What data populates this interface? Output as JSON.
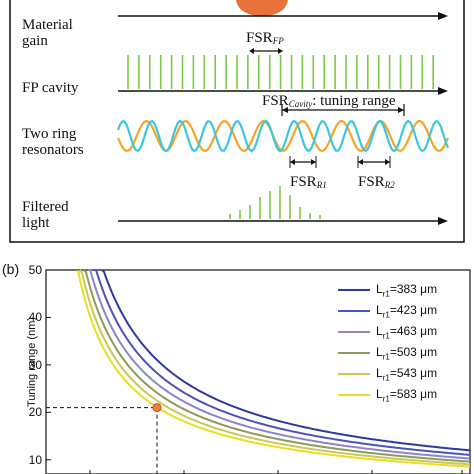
{
  "panel_a": {
    "rows": [
      {
        "label_line1": "Material",
        "label_line2": "gain"
      },
      {
        "label_line1": "FP cavity",
        "label_line2": ""
      },
      {
        "label_line1": "Two ring",
        "label_line2": "resonators"
      },
      {
        "label_line1": "Filtered",
        "label_line2": "light"
      }
    ],
    "fsr_fp": {
      "main": "FSR",
      "sub": "FP"
    },
    "fsr_cavity": {
      "main": "FSR",
      "sub": "Cavity",
      "suffix": ": tuning range"
    },
    "fsr_r1": {
      "main": "FSR",
      "sub": "R1"
    },
    "fsr_r2": {
      "main": "FSR",
      "sub": "R2"
    },
    "colors": {
      "gain": "#e8733a",
      "fp": "#7ac943",
      "ring1": "#f5a623",
      "ring2": "#3cc6e0",
      "filtered": "#7ac943"
    }
  },
  "panel_b": {
    "label": "(b)",
    "ylabel": "Tuning range (nm)",
    "chart_data": {
      "type": "line",
      "ylim": [
        7,
        50
      ],
      "yticks": [
        10,
        20,
        30,
        40,
        50
      ],
      "series": [
        {
          "name": "L",
          "sub": "r1",
          "suffix": "=383 μm",
          "color": "#2b3a9e",
          "k": 1.0
        },
        {
          "name": "L",
          "sub": "r1",
          "suffix": "=423 μm",
          "color": "#4b54b8",
          "k": 0.905
        },
        {
          "name": "L",
          "sub": "r1",
          "suffix": "=463 μm",
          "color": "#8b86c8",
          "k": 0.827
        },
        {
          "name": "L",
          "sub": "r1",
          "suffix": "=503 μm",
          "color": "#8c9a5a",
          "k": 0.762
        },
        {
          "name": "L",
          "sub": "r1",
          "suffix": "=543 μm",
          "color": "#c8c85a",
          "k": 0.705
        },
        {
          "name": "L",
          "sub": "r1",
          "suffix": "=583 μm",
          "color": "#e8df20",
          "k": 0.657
        }
      ],
      "marker": {
        "y": 21,
        "color": "#f08040"
      }
    }
  }
}
